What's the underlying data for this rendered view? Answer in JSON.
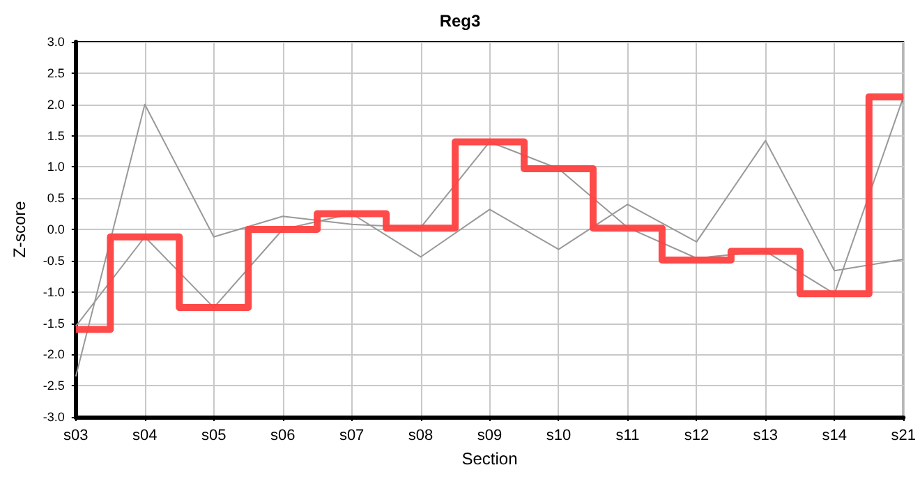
{
  "chart_data": {
    "type": "line",
    "title": "Reg3",
    "xlabel": "Section",
    "ylabel": "Z-score",
    "categories": [
      "s03",
      "s04",
      "s05",
      "s06",
      "s07",
      "s08",
      "s09",
      "s10",
      "s11",
      "s12",
      "s13",
      "s14",
      "s21"
    ],
    "series": [
      {
        "type": "line",
        "color": "#999999",
        "values": [
          -2.35,
          2.0,
          -0.12,
          0.21,
          0.08,
          0.03,
          1.4,
          0.97,
          0.03,
          -0.46,
          -0.35,
          -1.03,
          2.12
        ]
      },
      {
        "type": "line",
        "color": "#999999",
        "values": [
          -1.55,
          -0.12,
          -1.25,
          0.0,
          0.25,
          -0.44,
          0.32,
          -0.32,
          0.4,
          -0.2,
          1.42,
          -0.66,
          -0.48
        ]
      },
      {
        "type": "step",
        "color": "#ff4040",
        "values": [
          -1.6,
          -0.12,
          -1.25,
          0.0,
          0.25,
          0.02,
          1.4,
          0.97,
          0.02,
          -0.49,
          -0.35,
          -1.03,
          2.12
        ]
      }
    ],
    "ylim": [
      -3,
      3
    ],
    "yticks": [
      {
        "value": -3,
        "label": "-3.0"
      },
      {
        "value": -2.5,
        "label": "-2.5"
      },
      {
        "value": -2,
        "label": "-2.0"
      },
      {
        "value": -1.5,
        "label": "-1.5"
      },
      {
        "value": -1,
        "label": "-1.0"
      },
      {
        "value": -0.5,
        "label": "-0.5"
      },
      {
        "value": 0,
        "label": "0.0"
      },
      {
        "value": 0.5,
        "label": "0.5"
      },
      {
        "value": 1,
        "label": "1.0"
      },
      {
        "value": 1.5,
        "label": "1.5"
      },
      {
        "value": 2,
        "label": "2.0"
      },
      {
        "value": 2.5,
        "label": "2.5"
      },
      {
        "value": 3,
        "label": "3.0"
      }
    ],
    "grid": true,
    "marker": "none",
    "line_style": "solid"
  }
}
